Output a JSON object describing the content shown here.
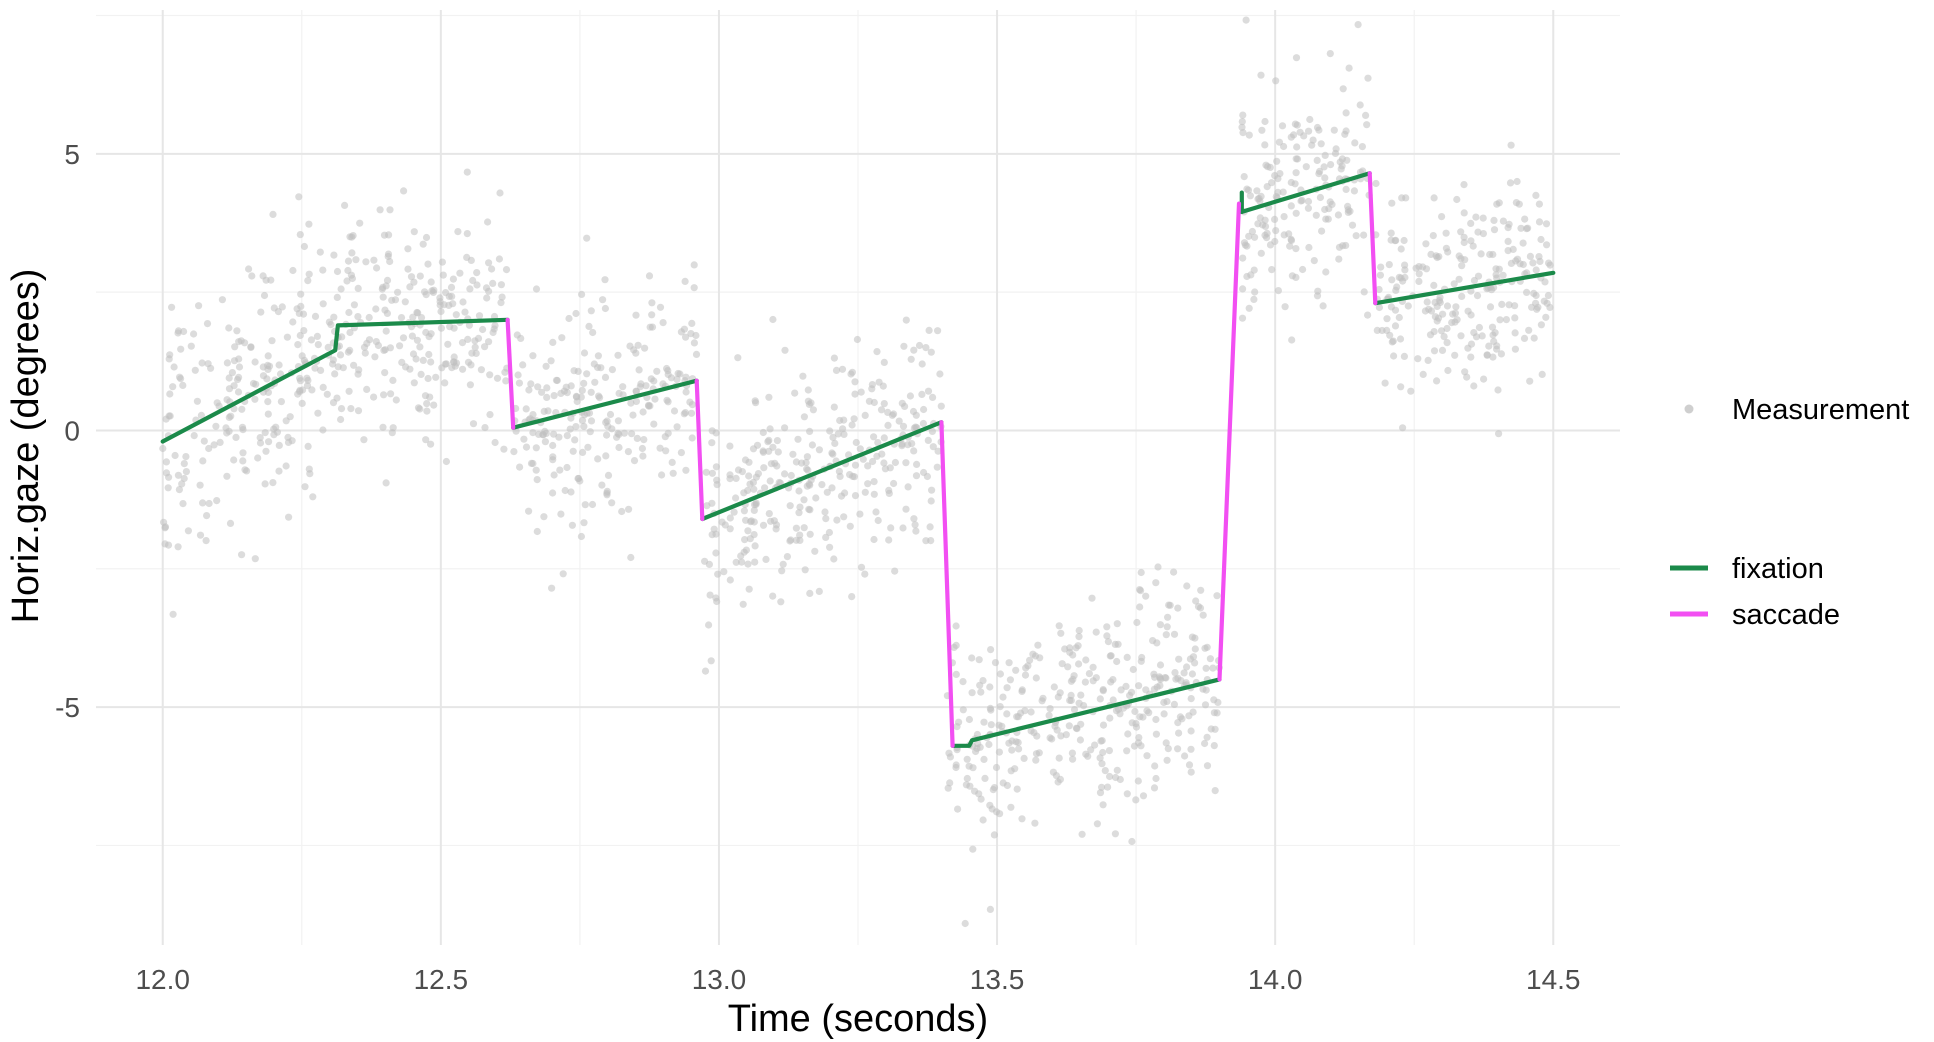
{
  "chart_data": {
    "type": "line",
    "title": "",
    "xlabel": "Time (seconds)",
    "ylabel": "Horiz.gaze (degrees)",
    "xlim": [
      11.88,
      14.62
    ],
    "ylim": [
      -9.3,
      7.6
    ],
    "x_ticks": [
      12.0,
      12.5,
      13.0,
      13.5,
      14.0,
      14.5
    ],
    "x_tick_labels": [
      "12.0",
      "12.5",
      "13.0",
      "13.5",
      "14.0",
      "14.5"
    ],
    "y_ticks": [
      -5,
      0,
      5
    ],
    "y_tick_labels": [
      "-5",
      "0",
      "5"
    ],
    "grid": true,
    "legend": {
      "position": "right",
      "scatter_label": "Measurement",
      "entries": [
        {
          "name": "fixation",
          "color": "#1b8a4a"
        },
        {
          "name": "saccade",
          "color": "#f24ff2"
        }
      ]
    },
    "measurement_color": "#bfbfbf",
    "scatter_segments": [
      {
        "x0": 12.0,
        "x1": 12.31,
        "y0": -0.2,
        "y1": 1.4,
        "sd": 1.1,
        "n": 230
      },
      {
        "x0": 12.31,
        "x1": 12.62,
        "y0": 1.9,
        "y1": 2.0,
        "sd": 0.95,
        "n": 230
      },
      {
        "x0": 12.63,
        "x1": 12.96,
        "y0": 0.1,
        "y1": 0.85,
        "sd": 0.95,
        "n": 240
      },
      {
        "x0": 12.97,
        "x1": 13.4,
        "y0": -1.6,
        "y1": 0.1,
        "sd": 1.05,
        "n": 320
      },
      {
        "x0": 13.41,
        "x1": 13.9,
        "y0": -5.7,
        "y1": -4.5,
        "sd": 0.95,
        "n": 360
      },
      {
        "x0": 13.94,
        "x1": 14.17,
        "y0": 4.0,
        "y1": 4.7,
        "sd": 0.95,
        "n": 180
      },
      {
        "x0": 14.18,
        "x1": 14.5,
        "y0": 2.3,
        "y1": 2.9,
        "sd": 0.95,
        "n": 240
      }
    ],
    "series": [
      {
        "name": "fixation",
        "segments": [
          [
            [
              12.0,
              -0.2
            ],
            [
              12.31,
              1.45
            ],
            [
              12.315,
              1.9
            ],
            [
              12.62,
              2.0
            ]
          ],
          [
            [
              12.63,
              0.05
            ],
            [
              12.96,
              0.9
            ]
          ],
          [
            [
              12.97,
              -1.6
            ],
            [
              13.4,
              0.15
            ]
          ],
          [
            [
              13.42,
              -5.7
            ],
            [
              13.45,
              -5.7
            ],
            [
              13.455,
              -5.6
            ],
            [
              13.9,
              -4.5
            ]
          ],
          [
            [
              13.94,
              3.95
            ],
            [
              13.94,
              4.3
            ]
          ],
          [
            [
              13.94,
              3.95
            ],
            [
              14.17,
              4.65
            ]
          ],
          [
            [
              14.18,
              2.3
            ],
            [
              14.5,
              2.85
            ]
          ]
        ]
      },
      {
        "name": "saccade",
        "segments": [
          [
            [
              12.62,
              2.0
            ],
            [
              12.63,
              0.05
            ]
          ],
          [
            [
              12.96,
              0.9
            ],
            [
              12.97,
              -1.6
            ]
          ],
          [
            [
              13.4,
              0.15
            ],
            [
              13.42,
              -5.7
            ]
          ],
          [
            [
              13.9,
              -4.5
            ],
            [
              13.935,
              4.1
            ]
          ],
          [
            [
              14.17,
              4.65
            ],
            [
              14.18,
              2.3
            ]
          ]
        ]
      }
    ]
  }
}
